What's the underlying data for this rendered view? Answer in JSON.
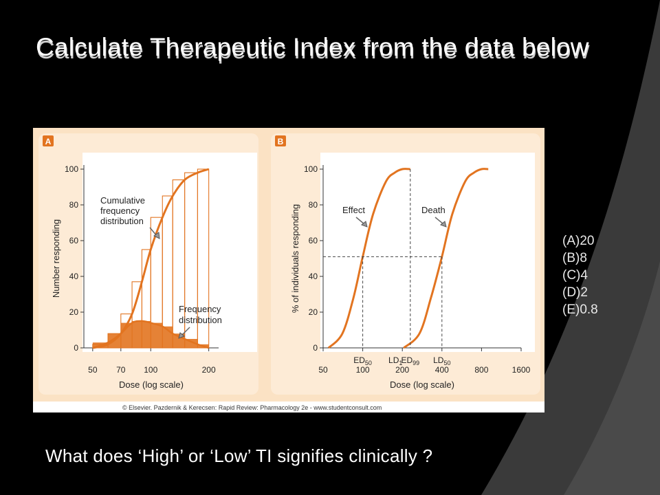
{
  "slide": {
    "title": "Calculate Therapeutic Index from the data below",
    "question": "What  does ‘High’ or ‘Low’ TI signifies clinically ?",
    "options": [
      "(A)20",
      "(B)8",
      "(C)4",
      "(D)2",
      "(E)0.8"
    ],
    "credit": "© Elsevier. Pazdernik & Kerecsen: Rapid Review: Pharmacology 2e - www.studentconsult.com",
    "colors": {
      "background": "#000000",
      "panel": "#fbe7cf",
      "curve": "#e27420",
      "text": "#ffffff"
    }
  },
  "chart_data": [
    {
      "type": "line",
      "panel_label": "A",
      "ylabel": "Number responding",
      "xlabel": "Dose (log scale)",
      "x_scale": "log",
      "xlim": [
        45,
        225
      ],
      "ylim": [
        0,
        100
      ],
      "x_ticks": [
        50,
        70,
        100,
        200
      ],
      "y_ticks": [
        0,
        20,
        40,
        60,
        80,
        100
      ],
      "annotations": [
        "Cumulative frequency distribution",
        "Frequency distribution"
      ],
      "series": [
        {
          "name": "Cumulative frequency distribution",
          "x": [
            50,
            60,
            70,
            80,
            90,
            100,
            115,
            130,
            150,
            175,
            200
          ],
          "y": [
            0,
            2,
            8,
            19,
            37,
            55,
            73,
            85,
            94,
            98,
            100
          ]
        },
        {
          "name": "Frequency distribution",
          "x": [
            50,
            60,
            70,
            80,
            90,
            100,
            115,
            130,
            150,
            175,
            200
          ],
          "y": [
            0,
            3,
            8,
            14,
            15,
            14,
            12,
            8,
            5,
            2,
            0
          ]
        }
      ]
    },
    {
      "type": "line",
      "panel_label": "B",
      "ylabel": "% of individuals responding",
      "xlabel": "Dose (log scale)",
      "x_scale": "log",
      "xlim": [
        50,
        1600
      ],
      "ylim": [
        0,
        100
      ],
      "x_ticks": [
        50,
        100,
        200,
        400,
        800,
        1600
      ],
      "y_ticks": [
        0,
        20,
        40,
        60,
        80,
        100
      ],
      "annotations": [
        "ED50",
        "LD1",
        "ED99",
        "LD50"
      ],
      "series": [
        {
          "name": "Effect",
          "x": [
            55,
            70,
            85,
            100,
            120,
            150,
            175,
            200,
            230
          ],
          "y": [
            0,
            8,
            28,
            51,
            75,
            93,
            98,
            100,
            100
          ]
        },
        {
          "name": "Death",
          "x": [
            205,
            270,
            330,
            400,
            480,
            600,
            700,
            800,
            900
          ],
          "y": [
            0,
            8,
            28,
            51,
            75,
            93,
            98,
            100,
            100
          ]
        }
      ]
    }
  ]
}
